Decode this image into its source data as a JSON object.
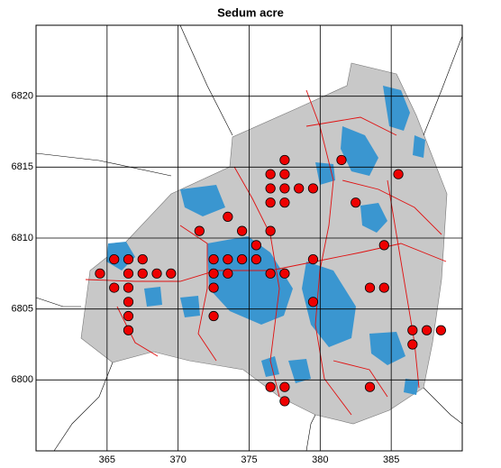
{
  "chart_data": {
    "type": "scatter",
    "title": "Sedum acre",
    "xlim": [
      360,
      390
    ],
    "ylim": [
      6795,
      6825
    ],
    "xticks": [
      365,
      370,
      375,
      380,
      385
    ],
    "yticks": [
      6800,
      6805,
      6810,
      6815,
      6820
    ],
    "grid": true,
    "color": "#ee0000",
    "x": [
      381.5,
      385.5,
      377.5,
      377.5,
      376.5,
      376.5,
      377.5,
      378.5,
      379.5,
      376.5,
      377.5,
      382.5,
      373.5,
      371.5,
      374.5,
      376.5,
      375.5,
      384.5,
      364.5,
      365.5,
      366.5,
      367.5,
      366.5,
      367.5,
      368.5,
      369.5,
      365.5,
      366.5,
      366.5,
      366.5,
      366.5,
      372.5,
      373.5,
      374.5,
      375.5,
      379.5,
      372.5,
      373.5,
      376.5,
      377.5,
      372.5,
      372.5,
      379.5,
      383.5,
      384.5,
      386.5,
      387.5,
      388.5,
      386.5,
      376.5,
      377.5,
      377.5,
      383.5
    ],
    "values": [
      6815.5,
      6814.5,
      6815.5,
      6814.5,
      6814.5,
      6813.5,
      6813.5,
      6813.5,
      6813.5,
      6812.5,
      6812.5,
      6812.5,
      6811.5,
      6810.5,
      6810.5,
      6810.5,
      6809.5,
      6809.5,
      6807.5,
      6808.5,
      6808.5,
      6808.5,
      6807.5,
      6807.5,
      6807.5,
      6807.5,
      6806.5,
      6806.5,
      6805.5,
      6804.5,
      6803.5,
      6808.5,
      6808.5,
      6808.5,
      6808.5,
      6808.5,
      6807.5,
      6807.5,
      6807.5,
      6807.5,
      6806.5,
      6804.5,
      6805.5,
      6806.5,
      6806.5,
      6803.5,
      6803.5,
      6803.5,
      6802.5,
      6799.5,
      6799.5,
      6798.5,
      6799.5
    ]
  }
}
